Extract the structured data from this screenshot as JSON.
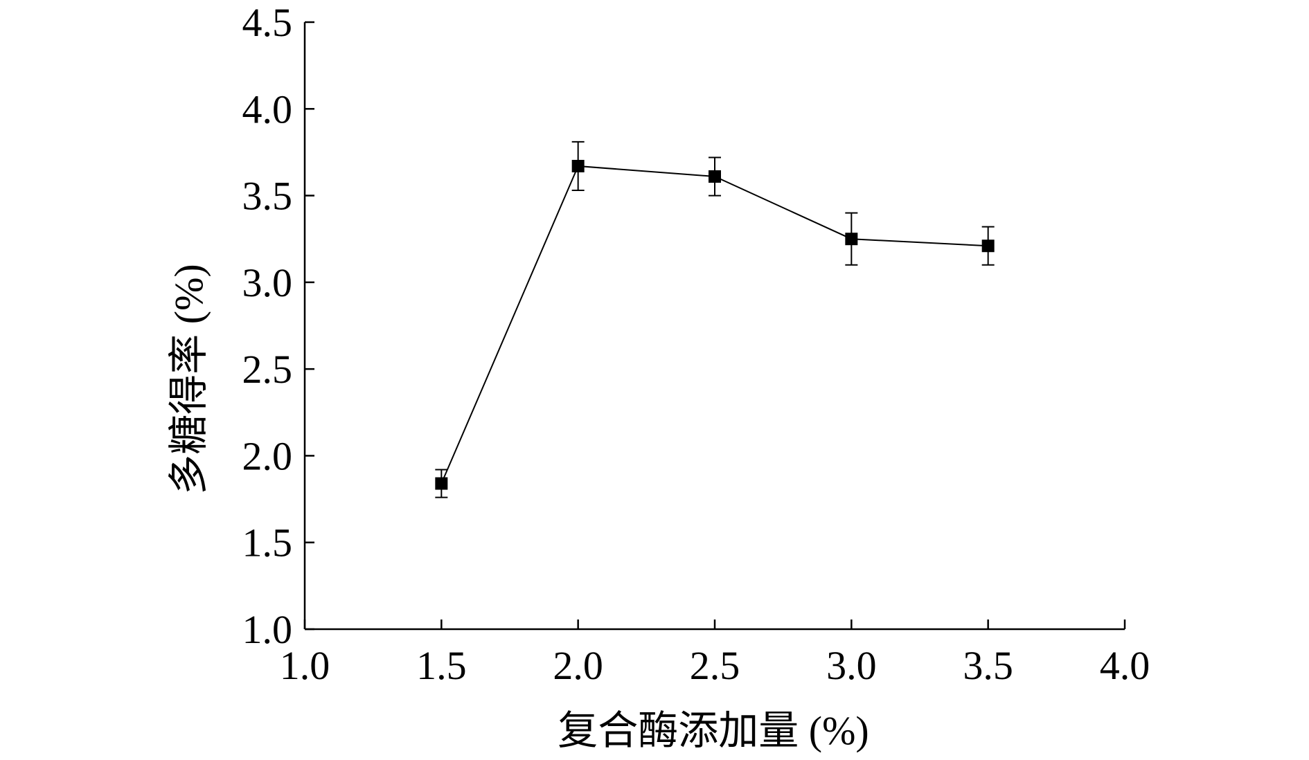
{
  "chart_data": {
    "type": "line",
    "title": "",
    "xlabel": "复合酶添加量 (%)",
    "ylabel": "多糖得率 (%)",
    "xlim": [
      1.0,
      4.0
    ],
    "ylim": [
      1.0,
      4.5
    ],
    "x_ticks": [
      1.0,
      1.5,
      2.0,
      2.5,
      3.0,
      3.5,
      4.0
    ],
    "y_ticks": [
      1.0,
      1.5,
      2.0,
      2.5,
      3.0,
      3.5,
      4.0,
      4.5
    ],
    "x_tick_labels": [
      "1.0",
      "1.5",
      "2.0",
      "2.5",
      "3.0",
      "3.5",
      "4.0"
    ],
    "y_tick_labels": [
      "1.0",
      "1.5",
      "2.0",
      "2.5",
      "3.0",
      "3.5",
      "4.0",
      "4.5"
    ],
    "grid": false,
    "legend": "none",
    "series": [
      {
        "x": [
          1.5,
          2.0,
          2.5,
          3.0,
          3.5
        ],
        "y": [
          1.84,
          3.67,
          3.61,
          3.25,
          3.21
        ],
        "error": [
          0.08,
          0.14,
          0.11,
          0.15,
          0.11
        ],
        "marker": "square",
        "color": "#000000"
      }
    ]
  }
}
